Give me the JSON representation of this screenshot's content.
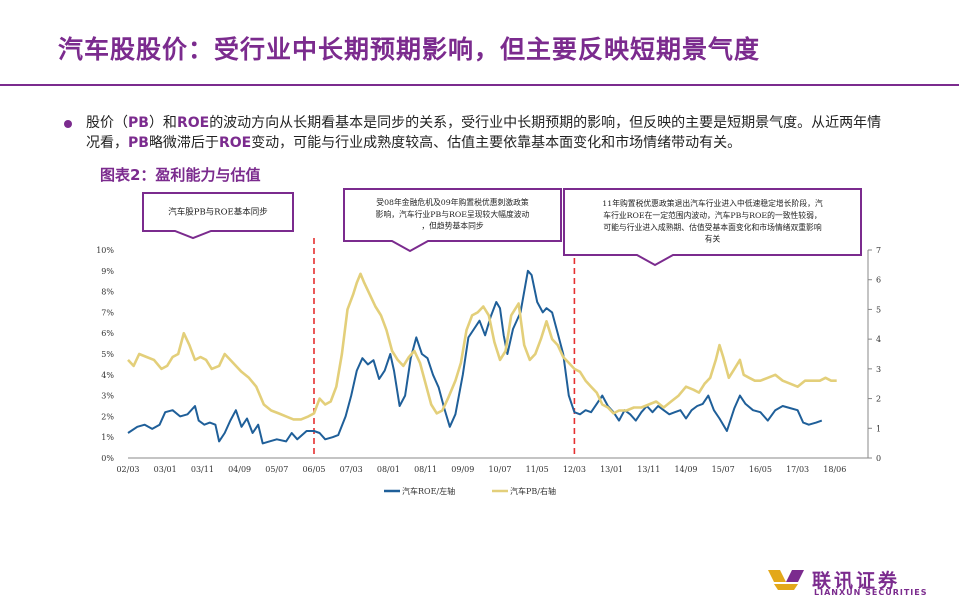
{
  "title": "汽车股股价：受行业中长期预期影响，但主要反映短期景气度",
  "bullet": {
    "t1": "股价（",
    "h1": "PB",
    "t2": "）和",
    "h2": "ROE",
    "t3": "的波动方向从长期看基本是同步的关系，受行业中长期预期的影响，但反映的主要是短期景气度。从近两年情况看，",
    "h3": "PB",
    "t4": "略微滞后于",
    "h4": "ROE",
    "t5": "变动，可能与行业成熟度较高、估值主要依靠基本面变化和市场情绪带动有关。"
  },
  "figure_label": "图表2：盈利能力与估值",
  "annotations": [
    {
      "lines": [
        "汽车股PB与ROE基本同步"
      ]
    },
    {
      "lines": [
        "受08年金融危机及09年购置税优惠刺激政策",
        "影响，汽车行业PB与ROE呈现较大幅度波动",
        "，但趋势基本同步"
      ]
    },
    {
      "lines": [
        "11年购置税优惠政策退出汽车行业进入中低速稳定增长阶段，汽",
        "车行业ROE在一定范围内波动，汽车PB与ROE的一致性较弱，",
        "可能与行业进入成熟期、估值受基本面变化和市场情绪双重影响",
        "有关"
      ]
    }
  ],
  "brand": {
    "cn": "联讯证券",
    "en": "LIANXUN SECURITIES"
  },
  "colors": {
    "accent": "#7b2b8e",
    "roe": "#1f5f99",
    "pb": "#e3cf7a",
    "divider": "#e53030"
  },
  "chart_data": {
    "type": "line",
    "x_ticks": [
      "02/03",
      "03/01",
      "03/11",
      "04/09",
      "05/07",
      "06/05",
      "07/03",
      "08/01",
      "08/11",
      "09/09",
      "10/07",
      "11/05",
      "12/03",
      "13/01",
      "13/11",
      "14/09",
      "15/07",
      "16/05",
      "17/03",
      "18/06"
    ],
    "y_left": {
      "ticks": [
        "0%",
        "1%",
        "2%",
        "3%",
        "4%",
        "5%",
        "6%",
        "7%",
        "8%",
        "9%",
        "10%"
      ],
      "range": [
        0,
        10
      ]
    },
    "y_right": {
      "ticks": [
        "0",
        "1",
        "2",
        "3",
        "4",
        "5",
        "6",
        "7"
      ],
      "range": [
        0,
        7
      ]
    },
    "dividers_at_x_tick": [
      5,
      12
    ],
    "series": [
      {
        "name": "汽车ROE/左轴",
        "axis": "left",
        "points": [
          [
            0,
            1.2
          ],
          [
            0.25,
            1.5
          ],
          [
            0.45,
            1.6
          ],
          [
            0.65,
            1.4
          ],
          [
            0.85,
            1.6
          ],
          [
            1.0,
            2.2
          ],
          [
            1.2,
            2.3
          ],
          [
            1.4,
            2.0
          ],
          [
            1.6,
            2.1
          ],
          [
            1.8,
            2.5
          ],
          [
            1.9,
            1.8
          ],
          [
            2.05,
            1.6
          ],
          [
            2.2,
            1.7
          ],
          [
            2.35,
            1.6
          ],
          [
            2.45,
            0.8
          ],
          [
            2.6,
            1.2
          ],
          [
            2.75,
            1.8
          ],
          [
            2.9,
            2.3
          ],
          [
            3.05,
            1.5
          ],
          [
            3.2,
            1.9
          ],
          [
            3.35,
            1.2
          ],
          [
            3.5,
            1.6
          ],
          [
            3.62,
            0.7
          ],
          [
            3.8,
            0.8
          ],
          [
            4.0,
            0.9
          ],
          [
            4.25,
            0.8
          ],
          [
            4.4,
            1.2
          ],
          [
            4.55,
            0.9
          ],
          [
            4.8,
            1.3
          ],
          [
            5.0,
            1.3
          ],
          [
            5.15,
            1.2
          ],
          [
            5.3,
            0.9
          ],
          [
            5.5,
            1.0
          ],
          [
            5.65,
            1.1
          ],
          [
            5.85,
            2.0
          ],
          [
            6.0,
            3.0
          ],
          [
            6.15,
            4.2
          ],
          [
            6.3,
            4.8
          ],
          [
            6.45,
            4.5
          ],
          [
            6.6,
            4.7
          ],
          [
            6.75,
            3.8
          ],
          [
            6.9,
            4.2
          ],
          [
            7.05,
            5.0
          ],
          [
            7.15,
            4.2
          ],
          [
            7.3,
            2.5
          ],
          [
            7.45,
            3.0
          ],
          [
            7.6,
            4.8
          ],
          [
            7.75,
            5.8
          ],
          [
            7.9,
            5.0
          ],
          [
            8.05,
            4.8
          ],
          [
            8.2,
            4.0
          ],
          [
            8.35,
            3.4
          ],
          [
            8.5,
            2.4
          ],
          [
            8.65,
            1.5
          ],
          [
            8.8,
            2.1
          ],
          [
            9.0,
            4.0
          ],
          [
            9.15,
            5.8
          ],
          [
            9.3,
            6.2
          ],
          [
            9.45,
            6.6
          ],
          [
            9.6,
            5.9
          ],
          [
            9.75,
            6.8
          ],
          [
            9.9,
            7.5
          ],
          [
            10.0,
            7.2
          ],
          [
            10.1,
            5.9
          ],
          [
            10.2,
            5.0
          ],
          [
            10.35,
            6.2
          ],
          [
            10.55,
            7.0
          ],
          [
            10.75,
            9.0
          ],
          [
            10.85,
            8.8
          ],
          [
            11.0,
            7.5
          ],
          [
            11.15,
            7.0
          ],
          [
            11.25,
            7.2
          ],
          [
            11.4,
            7.0
          ],
          [
            11.55,
            6.0
          ],
          [
            11.7,
            5.0
          ],
          [
            11.85,
            3.0
          ],
          [
            12.0,
            2.2
          ],
          [
            12.15,
            2.1
          ],
          [
            12.3,
            2.3
          ],
          [
            12.45,
            2.2
          ],
          [
            12.6,
            2.6
          ],
          [
            12.75,
            3.0
          ],
          [
            12.9,
            2.5
          ],
          [
            13.05,
            2.2
          ],
          [
            13.2,
            1.8
          ],
          [
            13.35,
            2.3
          ],
          [
            13.5,
            2.1
          ],
          [
            13.65,
            1.8
          ],
          [
            13.8,
            2.2
          ],
          [
            13.95,
            2.5
          ],
          [
            14.1,
            2.2
          ],
          [
            14.25,
            2.5
          ],
          [
            14.4,
            2.3
          ],
          [
            14.55,
            2.1
          ],
          [
            14.7,
            2.2
          ],
          [
            14.85,
            2.3
          ],
          [
            15.0,
            1.9
          ],
          [
            15.15,
            2.3
          ],
          [
            15.3,
            2.5
          ],
          [
            15.45,
            2.6
          ],
          [
            15.6,
            3.0
          ],
          [
            15.75,
            2.3
          ],
          [
            15.9,
            1.9
          ],
          [
            16.1,
            1.3
          ],
          [
            16.3,
            2.4
          ],
          [
            16.45,
            3.0
          ],
          [
            16.6,
            2.6
          ],
          [
            16.8,
            2.3
          ],
          [
            17.0,
            2.2
          ],
          [
            17.2,
            1.8
          ],
          [
            17.4,
            2.3
          ],
          [
            17.6,
            2.5
          ],
          [
            17.8,
            2.4
          ],
          [
            18.0,
            2.3
          ],
          [
            18.15,
            1.7
          ],
          [
            18.3,
            1.6
          ],
          [
            18.5,
            1.7
          ],
          [
            18.65,
            1.8
          ]
        ]
      },
      {
        "name": "汽车PB/右轴",
        "axis": "right",
        "points": [
          [
            0,
            3.3
          ],
          [
            0.15,
            3.1
          ],
          [
            0.3,
            3.5
          ],
          [
            0.5,
            3.4
          ],
          [
            0.7,
            3.3
          ],
          [
            0.9,
            3.0
          ],
          [
            1.05,
            3.1
          ],
          [
            1.2,
            3.4
          ],
          [
            1.35,
            3.5
          ],
          [
            1.5,
            4.2
          ],
          [
            1.65,
            3.8
          ],
          [
            1.8,
            3.3
          ],
          [
            1.95,
            3.4
          ],
          [
            2.1,
            3.3
          ],
          [
            2.25,
            3.0
          ],
          [
            2.45,
            3.1
          ],
          [
            2.6,
            3.5
          ],
          [
            2.75,
            3.3
          ],
          [
            2.9,
            3.1
          ],
          [
            3.05,
            2.9
          ],
          [
            3.25,
            2.7
          ],
          [
            3.45,
            2.4
          ],
          [
            3.65,
            1.8
          ],
          [
            3.85,
            1.6
          ],
          [
            4.05,
            1.5
          ],
          [
            4.25,
            1.4
          ],
          [
            4.45,
            1.3
          ],
          [
            4.65,
            1.3
          ],
          [
            4.85,
            1.4
          ],
          [
            5.0,
            1.5
          ],
          [
            5.15,
            2.0
          ],
          [
            5.3,
            1.8
          ],
          [
            5.45,
            1.9
          ],
          [
            5.6,
            2.4
          ],
          [
            5.75,
            3.5
          ],
          [
            5.9,
            5.0
          ],
          [
            6.05,
            5.5
          ],
          [
            6.15,
            5.9
          ],
          [
            6.25,
            6.2
          ],
          [
            6.35,
            5.9
          ],
          [
            6.5,
            5.5
          ],
          [
            6.65,
            5.1
          ],
          [
            6.8,
            4.8
          ],
          [
            6.95,
            4.3
          ],
          [
            7.1,
            3.6
          ],
          [
            7.25,
            3.3
          ],
          [
            7.4,
            3.1
          ],
          [
            7.55,
            3.4
          ],
          [
            7.7,
            3.6
          ],
          [
            7.85,
            3.2
          ],
          [
            8.0,
            2.5
          ],
          [
            8.15,
            1.8
          ],
          [
            8.3,
            1.5
          ],
          [
            8.45,
            1.6
          ],
          [
            8.6,
            2.0
          ],
          [
            8.8,
            2.6
          ],
          [
            8.95,
            3.2
          ],
          [
            9.1,
            4.3
          ],
          [
            9.25,
            4.8
          ],
          [
            9.4,
            4.9
          ],
          [
            9.55,
            5.1
          ],
          [
            9.7,
            4.8
          ],
          [
            9.85,
            3.9
          ],
          [
            10.0,
            3.3
          ],
          [
            10.15,
            3.6
          ],
          [
            10.3,
            4.8
          ],
          [
            10.5,
            5.2
          ],
          [
            10.65,
            3.8
          ],
          [
            10.8,
            3.3
          ],
          [
            10.95,
            3.5
          ],
          [
            11.1,
            4.0
          ],
          [
            11.25,
            4.6
          ],
          [
            11.4,
            4.0
          ],
          [
            11.55,
            3.8
          ],
          [
            11.7,
            3.4
          ],
          [
            11.85,
            3.2
          ],
          [
            12.0,
            3.0
          ],
          [
            12.15,
            2.9
          ],
          [
            12.3,
            2.6
          ],
          [
            12.45,
            2.4
          ],
          [
            12.6,
            2.2
          ],
          [
            12.75,
            1.8
          ],
          [
            12.9,
            1.7
          ],
          [
            13.05,
            1.5
          ],
          [
            13.2,
            1.6
          ],
          [
            13.4,
            1.6
          ],
          [
            13.6,
            1.7
          ],
          [
            13.8,
            1.7
          ],
          [
            14.0,
            1.8
          ],
          [
            14.2,
            1.9
          ],
          [
            14.4,
            1.7
          ],
          [
            14.6,
            1.9
          ],
          [
            14.8,
            2.1
          ],
          [
            15.0,
            2.4
          ],
          [
            15.2,
            2.3
          ],
          [
            15.35,
            2.2
          ],
          [
            15.5,
            2.5
          ],
          [
            15.65,
            2.7
          ],
          [
            15.8,
            3.3
          ],
          [
            15.9,
            3.8
          ],
          [
            16.0,
            3.4
          ],
          [
            16.15,
            2.7
          ],
          [
            16.3,
            3.0
          ],
          [
            16.45,
            3.3
          ],
          [
            16.55,
            2.8
          ],
          [
            16.7,
            2.7
          ],
          [
            16.85,
            2.6
          ],
          [
            17.0,
            2.6
          ],
          [
            17.2,
            2.7
          ],
          [
            17.4,
            2.8
          ],
          [
            17.6,
            2.6
          ],
          [
            17.8,
            2.5
          ],
          [
            18.0,
            2.4
          ],
          [
            18.2,
            2.6
          ],
          [
            18.4,
            2.6
          ],
          [
            18.6,
            2.6
          ],
          [
            18.75,
            2.7
          ],
          [
            18.9,
            2.6
          ],
          [
            19.05,
            2.6
          ]
        ]
      }
    ]
  }
}
